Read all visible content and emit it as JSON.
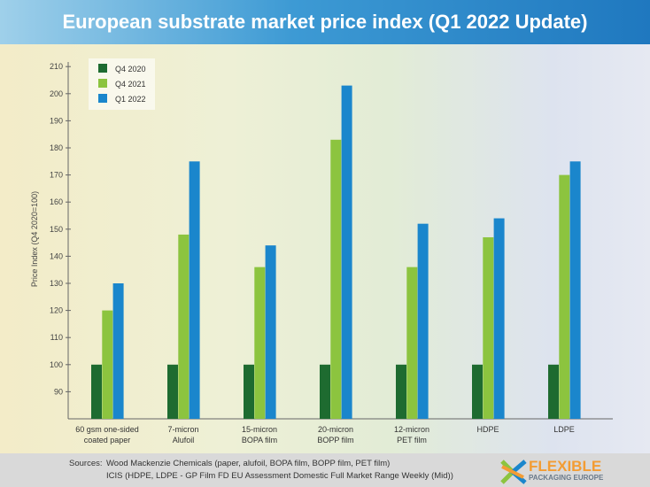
{
  "title": "European substrate market price index (Q1 2022 Update)",
  "chart_data": {
    "type": "bar",
    "title": "European substrate market price index (Q1 2022 Update)",
    "ylabel": "Price Index (Q4 2020=100)",
    "xlabel": "",
    "ylim": [
      80,
      210
    ],
    "yticks": [
      90,
      100,
      110,
      120,
      130,
      140,
      150,
      160,
      170,
      180,
      190,
      200,
      210
    ],
    "categories": [
      [
        "60 gsm one-sided",
        "coated paper"
      ],
      [
        "7-micron",
        "Alufoil"
      ],
      [
        "15-micron",
        "BOPA film"
      ],
      [
        "20-micron",
        "BOPP film"
      ],
      [
        "12-micron",
        "PET film"
      ],
      [
        "HDPE"
      ],
      [
        "LDPE"
      ]
    ],
    "series": [
      {
        "name": "Q4 2020",
        "color": "#1e6b30",
        "values": [
          100,
          100,
          100,
          100,
          100,
          100,
          100
        ]
      },
      {
        "name": "Q4 2021",
        "color": "#8cc43f",
        "values": [
          120,
          148,
          136,
          183,
          136,
          147,
          170
        ]
      },
      {
        "name": "Q1 2022",
        "color": "#1a86cc",
        "values": [
          130,
          175,
          144,
          203,
          152,
          154,
          175
        ]
      }
    ],
    "legend": "top-left",
    "grid": false
  },
  "footer": {
    "sources_label": "Sources:",
    "line1": "Wood Mackenzie Chemicals (paper, alufoil, BOPA film, BOPP film, PET film)",
    "line2": "ICIS (HDPE, LDPE - GP Film FD EU Assessment Domestic Full Market Range Weekly (Mid))"
  },
  "logo": {
    "name": "FLEXIBLE",
    "sub": "PACKAGING EUROPE"
  }
}
